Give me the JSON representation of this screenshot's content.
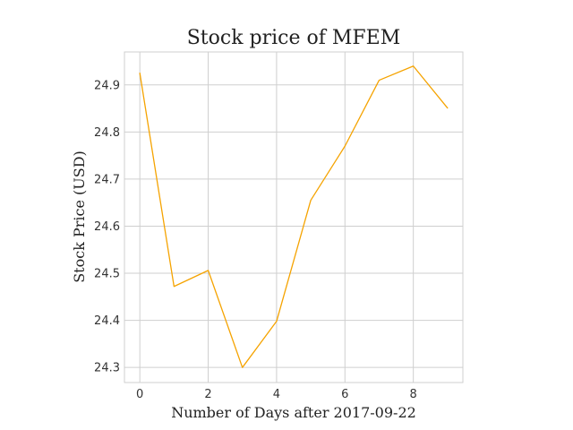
{
  "chart_data": {
    "type": "line",
    "title": "Stock price of MFEM",
    "xlabel": "Number of Days after 2017-09-22",
    "ylabel": "Stock Price (USD)",
    "x": [
      0,
      1,
      2,
      3,
      4,
      5,
      6,
      7,
      8,
      9
    ],
    "series": [
      {
        "values": [
          24.925,
          24.472,
          24.506,
          24.3,
          24.398,
          24.655,
          24.77,
          24.91,
          24.94,
          24.851
        ],
        "color": "#f5a300"
      }
    ],
    "xlim": [
      -0.45,
      9.45
    ],
    "ylim": [
      24.268,
      24.97
    ],
    "xticks": [
      0,
      2,
      4,
      6,
      8
    ],
    "yticks": [
      24.3,
      24.4,
      24.5,
      24.6,
      24.7,
      24.8,
      24.9
    ],
    "grid": true,
    "legend": "none"
  }
}
